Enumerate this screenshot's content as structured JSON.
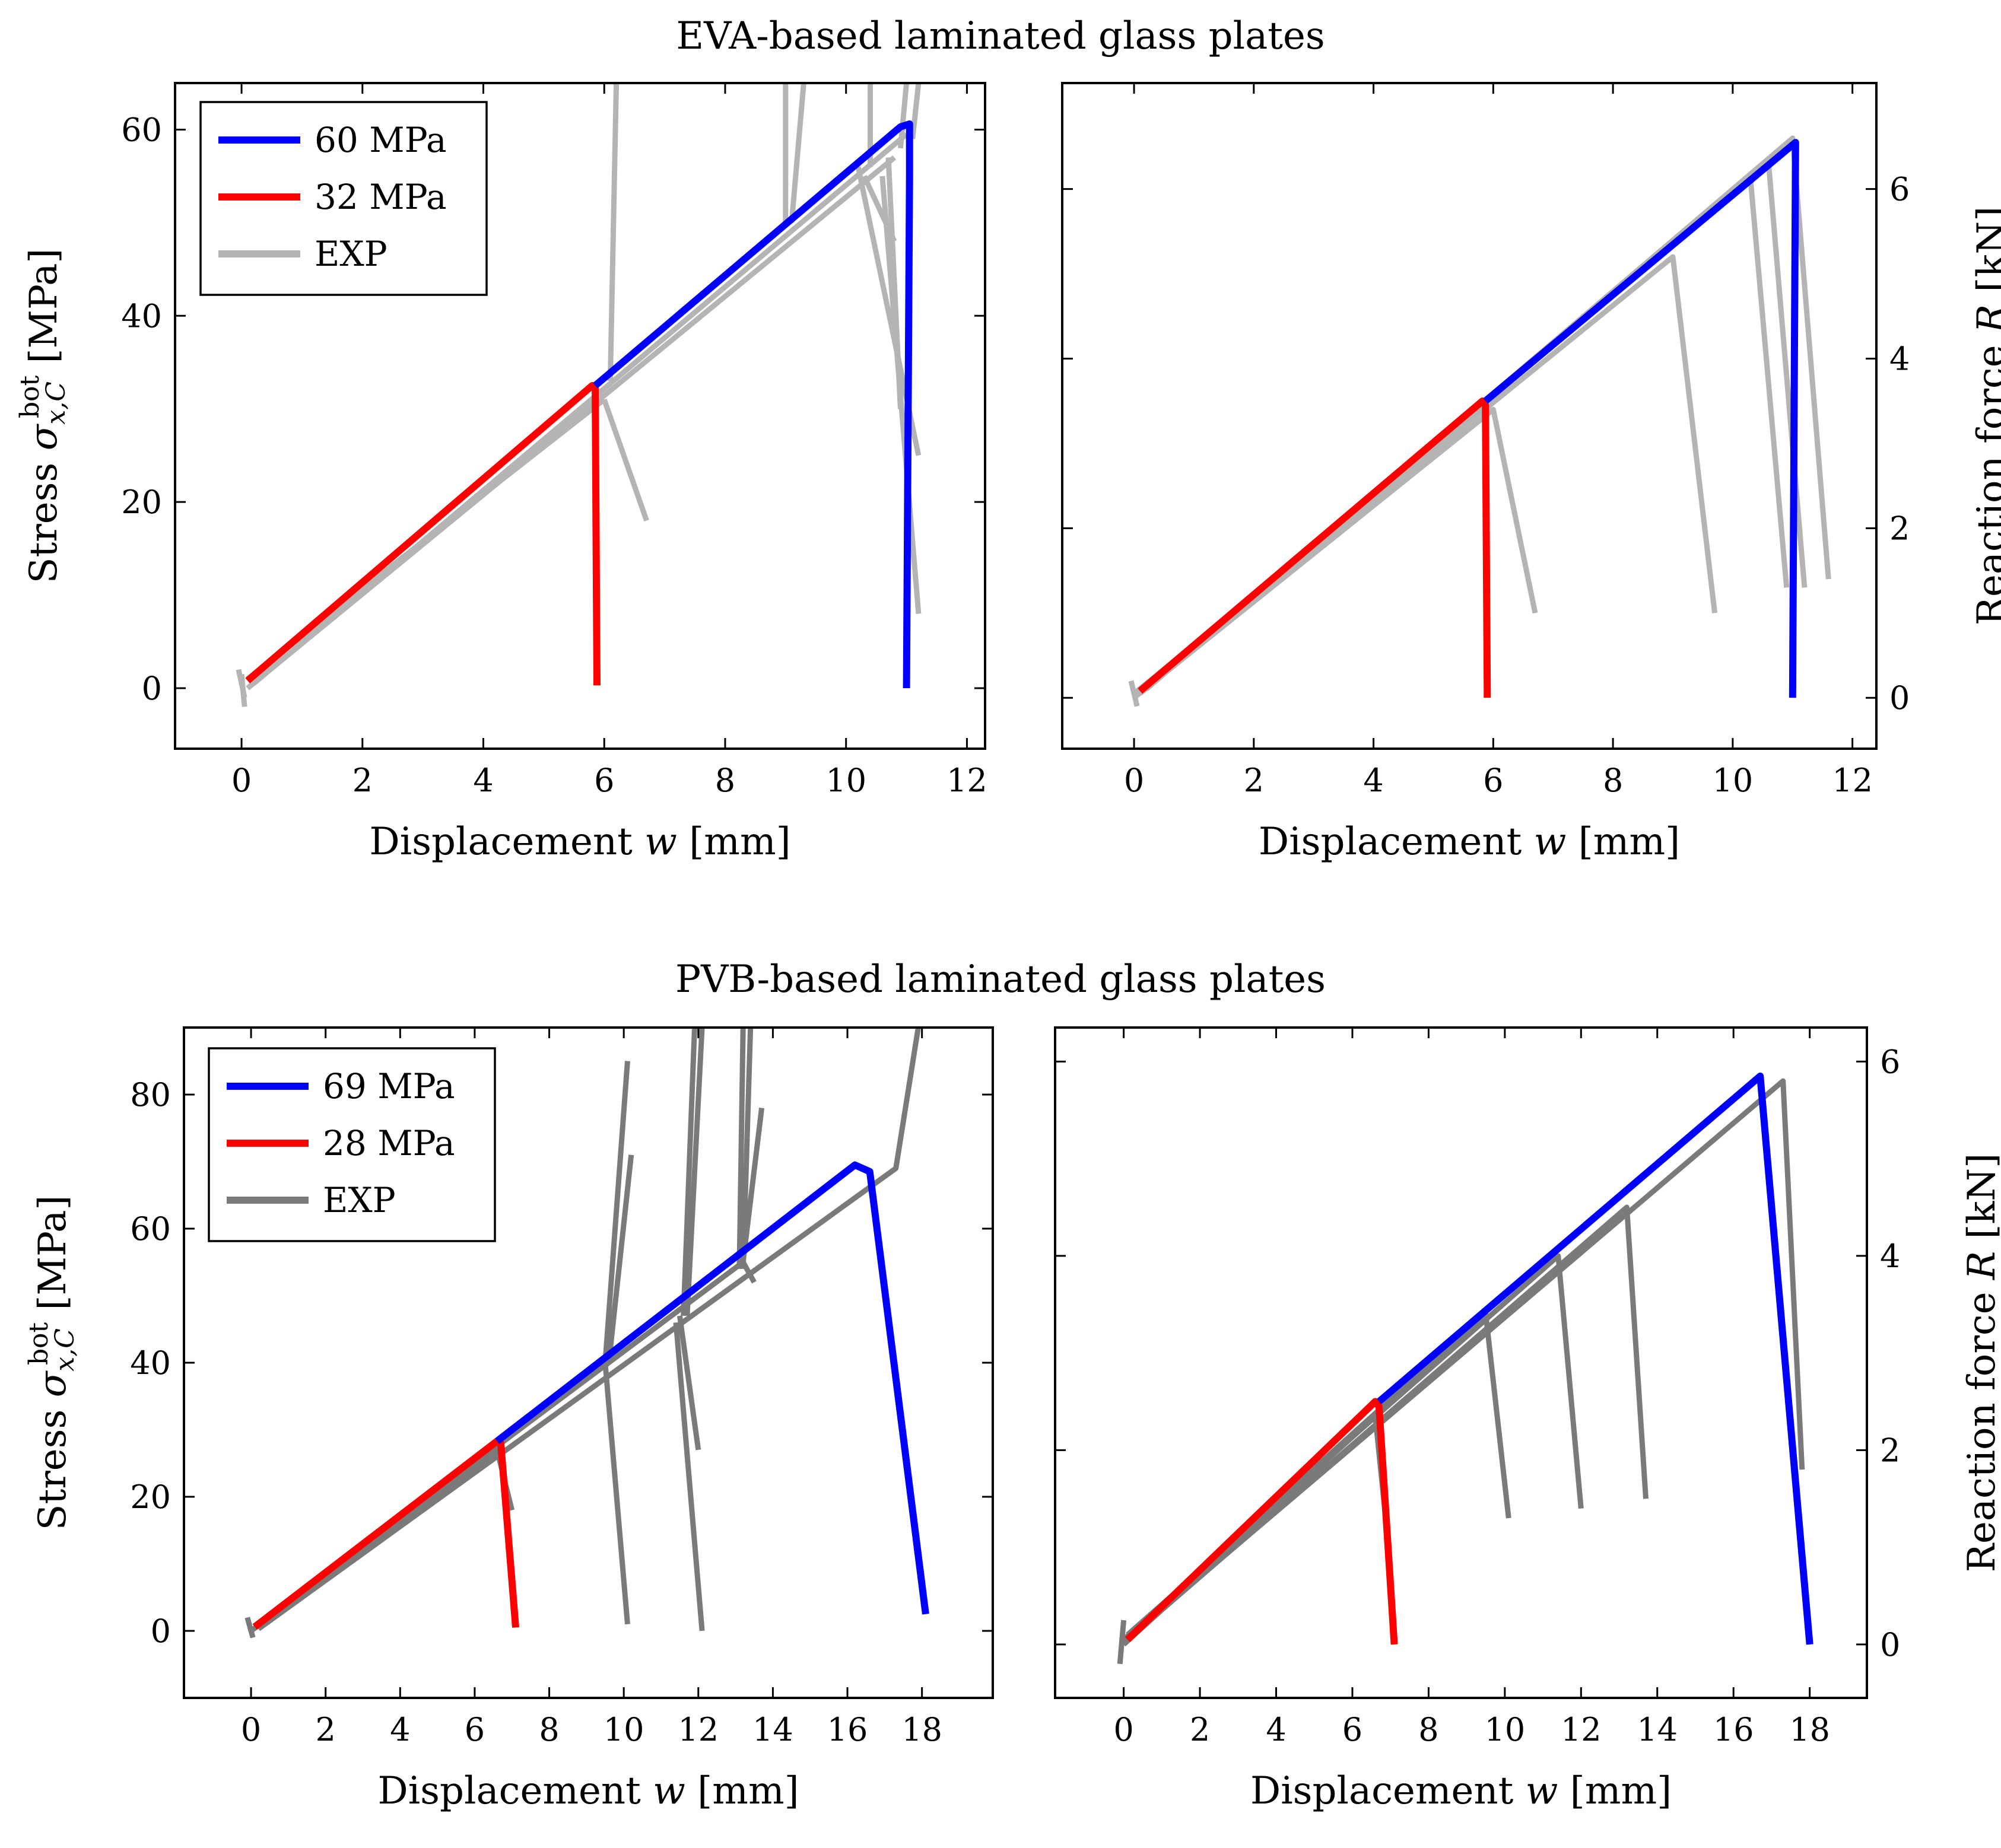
{
  "sections": [
    {
      "title": "EVA-based laminated glass plates"
    },
    {
      "title": "PVB-based laminated glass plates"
    }
  ],
  "colors": {
    "red": "#ff0000",
    "blue": "#0000ff",
    "exp_light": "#b4b4b4",
    "exp_dark": "#7a7a7a"
  },
  "chart_data": [
    {
      "id": "eva-stress",
      "type": "line",
      "xlabel": "Displacement w [mm]",
      "ylabel": "Stress σx,C bot [MPa]",
      "xlim": [
        -1.1,
        12.3
      ],
      "ylim": [
        -6.5,
        65
      ],
      "xticks": [
        0,
        2,
        4,
        6,
        8,
        10,
        12
      ],
      "yticks": [
        0,
        20,
        40,
        60
      ],
      "yaxis_side": "left",
      "show_yticklabels": true,
      "show_legend": true,
      "series": [
        {
          "name": "EXP",
          "legend": "EXP",
          "color": "exp_light",
          "width": 9,
          "lines": [
            [
              [
                0.1,
                1
              ],
              [
                6.0,
                31
              ]
            ],
            [
              [
                0.1,
                0
              ],
              [
                10.8,
                57
              ]
            ],
            [
              [
                0.2,
                0.5
              ],
              [
                11.0,
                59.5
              ]
            ],
            [
              [
                6.0,
                31
              ],
              [
                6.7,
                18
              ]
            ],
            [
              [
                6.1,
                33
              ],
              [
                6.2,
                65
              ]
            ],
            [
              [
                10.2,
                56
              ],
              [
                11.2,
                25
              ]
            ],
            [
              [
                10.6,
                55
              ],
              [
                11.2,
                8
              ]
            ],
            [
              [
                10.3,
                55
              ],
              [
                10.8,
                48
              ]
            ],
            [
              [
                10.4,
                56
              ],
              [
                10.4,
                65
              ]
            ],
            [
              [
                10.9,
                58
              ],
              [
                11.0,
                65
              ]
            ],
            [
              [
                11.1,
                59
              ],
              [
                11.2,
                65
              ]
            ],
            [
              [
                9.0,
                50
              ],
              [
                9.0,
                65
              ]
            ],
            [
              [
                9.1,
                50
              ],
              [
                9.3,
                65
              ]
            ],
            [
              [
                10.7,
                57
              ],
              [
                10.9,
                30
              ]
            ],
            [
              [
                -0.05,
                2
              ],
              [
                0.05,
                -1
              ]
            ],
            [
              [
                0.0,
                1.5
              ],
              [
                0.05,
                -2
              ]
            ]
          ]
        },
        {
          "name": "32 MPa",
          "legend": "32 MPa",
          "color": "red",
          "width": 12,
          "lines": [
            [
              [
                0.1,
                0.8
              ],
              [
                5.8,
                32.5
              ],
              [
                5.85,
                32.5
              ],
              [
                5.88,
                0.3
              ]
            ]
          ]
        },
        {
          "name": "60 MPa",
          "legend": "60 MPa",
          "color": "blue",
          "width": 12,
          "lines": [
            [
              [
                5.85,
                32.5
              ],
              [
                10.9,
                60.3
              ],
              [
                11.05,
                60.6
              ],
              [
                11.05,
                55
              ],
              [
                11.0,
                0
              ]
            ]
          ]
        }
      ]
    },
    {
      "id": "eva-force",
      "type": "line",
      "xlabel": "Displacement w [mm]",
      "ylabel": "Reaction force R [kN]",
      "xlim": [
        -1.2,
        12.4
      ],
      "ylim": [
        -0.6,
        7.25
      ],
      "xticks": [
        0,
        2,
        4,
        6,
        8,
        10,
        12
      ],
      "yticks": [
        0,
        2,
        4,
        6
      ],
      "yaxis_side": "right",
      "show_yticklabels": true,
      "show_legend": false,
      "series": [
        {
          "name": "EXP",
          "legend": "EXP",
          "color": "exp_light",
          "width": 9,
          "lines": [
            [
              [
                0.0,
                0.0
              ],
              [
                6.0,
                3.4
              ],
              [
                6.7,
                1.0
              ]
            ],
            [
              [
                0.0,
                0.05
              ],
              [
                9.0,
                5.2
              ],
              [
                9.7,
                1.0
              ]
            ],
            [
              [
                0.1,
                0.1
              ],
              [
                10.3,
                6.1
              ],
              [
                10.9,
                1.3
              ]
            ],
            [
              [
                0.1,
                0.05
              ],
              [
                10.6,
                6.3
              ],
              [
                11.2,
                1.3
              ]
            ],
            [
              [
                0.2,
                0.1
              ],
              [
                11.0,
                6.6
              ],
              [
                11.6,
                1.4
              ]
            ],
            [
              [
                -0.05,
                0.2
              ],
              [
                0.05,
                -0.1
              ]
            ]
          ]
        },
        {
          "name": "32 MPa",
          "legend": "32 MPa",
          "color": "red",
          "width": 12,
          "lines": [
            [
              [
                0.1,
                0.08
              ],
              [
                5.82,
                3.5
              ],
              [
                5.87,
                3.45
              ],
              [
                5.9,
                0.0
              ]
            ]
          ]
        },
        {
          "name": "60 MPa",
          "legend": "60 MPa",
          "color": "blue",
          "width": 12,
          "lines": [
            [
              [
                5.87,
                3.5
              ],
              [
                11.05,
                6.55
              ],
              [
                11.0,
                0.0
              ]
            ]
          ]
        }
      ]
    },
    {
      "id": "pvb-stress",
      "type": "line",
      "xlabel": "Displacement w [mm]",
      "ylabel": "Stress σx,C bot [MPa]",
      "xlim": [
        -1.8,
        19.9
      ],
      "ylim": [
        -10,
        90
      ],
      "xticks": [
        0,
        2,
        4,
        6,
        8,
        10,
        12,
        14,
        16,
        18
      ],
      "yticks": [
        0,
        20,
        40,
        60,
        80
      ],
      "yaxis_side": "left",
      "show_yticklabels": true,
      "show_legend": true,
      "series": [
        {
          "name": "EXP",
          "legend": "EXP",
          "color": "exp_dark",
          "width": 9,
          "lines": [
            [
              [
                0.0,
                0.0
              ],
              [
                6.6,
                27
              ],
              [
                7.0,
                18
              ]
            ],
            [
              [
                0.1,
                0.5
              ],
              [
                13.2,
                55
              ],
              [
                13.5,
                52
              ]
            ],
            [
              [
                0.2,
                0.3
              ],
              [
                17.3,
                69
              ],
              [
                17.9,
                90
              ]
            ],
            [
              [
                9.5,
                40
              ],
              [
                10.1,
                1
              ]
            ],
            [
              [
                9.5,
                40
              ],
              [
                10.1,
                85
              ]
            ],
            [
              [
                9.6,
                40
              ],
              [
                10.2,
                71
              ]
            ],
            [
              [
                11.4,
                46
              ],
              [
                12.1,
                0
              ]
            ],
            [
              [
                11.5,
                47
              ],
              [
                12.0,
                27
              ]
            ],
            [
              [
                11.6,
                47
              ],
              [
                11.9,
                90
              ]
            ],
            [
              [
                11.7,
                47
              ],
              [
                12.1,
                90
              ]
            ],
            [
              [
                13.1,
                54
              ],
              [
                13.2,
                90
              ]
            ],
            [
              [
                13.2,
                54
              ],
              [
                13.4,
                90
              ]
            ],
            [
              [
                13.2,
                55
              ],
              [
                13.7,
                78
              ]
            ],
            [
              [
                -0.1,
                2
              ],
              [
                0.05,
                -1
              ]
            ]
          ]
        },
        {
          "name": "28 MPa",
          "legend": "28 MPa",
          "color": "red",
          "width": 12,
          "lines": [
            [
              [
                0.1,
                0.6
              ],
              [
                6.6,
                28.3
              ],
              [
                6.7,
                28
              ],
              [
                7.1,
                0.5
              ]
            ]
          ]
        },
        {
          "name": "69 MPa",
          "legend": "69 MPa",
          "color": "blue",
          "width": 12,
          "lines": [
            [
              [
                6.6,
                28.3
              ],
              [
                16.2,
                69.5
              ],
              [
                16.6,
                68.5
              ],
              [
                18.1,
                2.5
              ]
            ]
          ]
        }
      ]
    },
    {
      "id": "pvb-force",
      "type": "line",
      "xlabel": "Displacement w [mm]",
      "ylabel": "Reaction force R [kN]",
      "xlim": [
        -1.8,
        19.5
      ],
      "ylim": [
        -0.55,
        6.35
      ],
      "xticks": [
        0,
        2,
        4,
        6,
        8,
        10,
        12,
        14,
        16,
        18
      ],
      "yticks": [
        0,
        2,
        4,
        6
      ],
      "yaxis_side": "right",
      "show_yticklabels": true,
      "show_legend": false,
      "series": [
        {
          "name": "EXP",
          "legend": "EXP",
          "color": "exp_dark",
          "width": 9,
          "lines": [
            [
              [
                0.0,
                0.0
              ],
              [
                6.6,
                2.35
              ],
              [
                6.9,
                1.2
              ]
            ],
            [
              [
                0.0,
                0.05
              ],
              [
                9.5,
                3.4
              ],
              [
                10.1,
                1.3
              ]
            ],
            [
              [
                0.1,
                0.1
              ],
              [
                11.4,
                4.0
              ],
              [
                12.0,
                1.4
              ]
            ],
            [
              [
                0.1,
                0.05
              ],
              [
                13.2,
                4.5
              ],
              [
                13.7,
                1.5
              ]
            ],
            [
              [
                0.2,
                0.1
              ],
              [
                17.3,
                5.8
              ],
              [
                17.8,
                1.8
              ]
            ],
            [
              [
                -0.1,
                -0.2
              ],
              [
                0.0,
                0.25
              ]
            ]
          ]
        },
        {
          "name": "28 MPa",
          "legend": "28 MPa",
          "color": "red",
          "width": 12,
          "lines": [
            [
              [
                0.1,
                0.05
              ],
              [
                6.6,
                2.5
              ],
              [
                6.7,
                2.45
              ],
              [
                7.1,
                0.0
              ]
            ]
          ]
        },
        {
          "name": "69 MPa",
          "legend": "69 MPa",
          "color": "blue",
          "width": 12,
          "lines": [
            [
              [
                6.7,
                2.5
              ],
              [
                16.7,
                5.85
              ],
              [
                18.0,
                0.0
              ]
            ]
          ]
        }
      ]
    }
  ]
}
